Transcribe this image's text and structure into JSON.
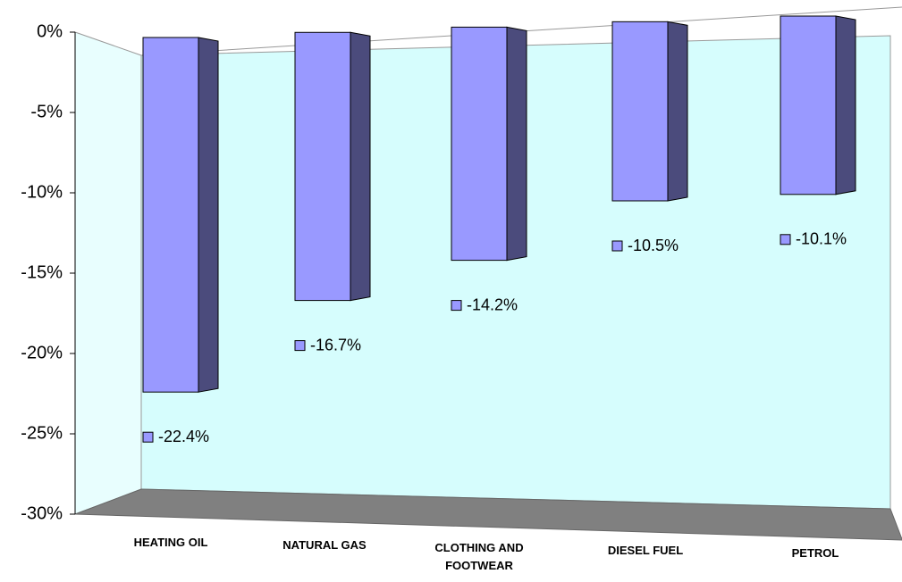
{
  "chart_data": {
    "type": "bar3d",
    "categories": [
      "HEATING OIL",
      "NATURAL GAS",
      "CLOTHING AND FOOTWEAR",
      "DIESEL FUEL",
      "PETROL"
    ],
    "values": [
      -22.4,
      -16.7,
      -14.2,
      -10.5,
      -10.1
    ],
    "value_labels": [
      "-22.4%",
      "-16.7%",
      "-14.2%",
      "-10.5%",
      "-10.1%"
    ],
    "color": "#9999ff",
    "ylim": [
      -30,
      0
    ],
    "yticks": [
      {
        "value": 0,
        "label": "0%"
      },
      {
        "value": -5,
        "label": "-5%"
      },
      {
        "value": -10,
        "label": "-10%"
      },
      {
        "value": -15,
        "label": "-15%"
      },
      {
        "value": -20,
        "label": "-20%"
      },
      {
        "value": -25,
        "label": "-25%"
      },
      {
        "value": -30,
        "label": "-30%"
      }
    ],
    "grid": false
  }
}
